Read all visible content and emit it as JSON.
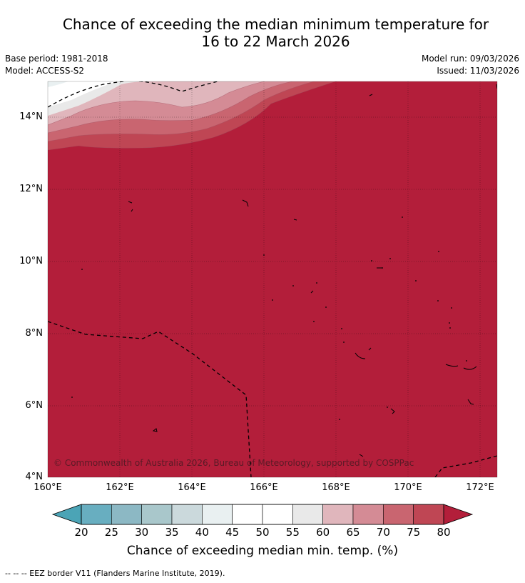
{
  "title": {
    "line1": "Chance of exceeding the median minimum temperature for",
    "line2": "16 to 22 March 2026"
  },
  "meta_left": {
    "base_period": "Base period: 1981-2018",
    "model": "Model: ACCESS-S2"
  },
  "meta_right": {
    "model_run": "Model run: 09/03/2026",
    "issued": "Issued: 11/03/2026"
  },
  "map": {
    "lat_labels": [
      "14°N",
      "12°N",
      "10°N",
      "8°N",
      "6°N",
      "4°N"
    ],
    "lon_labels": [
      "160°E",
      "162°E",
      "164°E",
      "166°E",
      "168°E",
      "170°E",
      "172°E"
    ],
    "copyright": "© Commonwealth of Australia 2026, Bureau of Meteorology, supported by COSPPac",
    "main_color": "#b31e3a"
  },
  "colorbar": {
    "ticks": [
      "20",
      "25",
      "30",
      "35",
      "40",
      "45",
      "50",
      "55",
      "60",
      "65",
      "70",
      "75",
      "80"
    ],
    "colors": [
      "#68aec0",
      "#8cb8c4",
      "#a9c7cb",
      "#cbd9dc",
      "#e9f0f1",
      "#ffffff",
      "#ffffff",
      "#e9e9e9",
      "#e0b6bc",
      "#d48b95",
      "#c96570",
      "#bf4654"
    ],
    "under_color": "#4ba4b6",
    "over_color": "#b31e3a",
    "label": "Chance of exceeding median min. temp. (%)"
  },
  "legend_note": "--  --  -- EEZ border V11 (Flanders Marine Institute, 2019)."
}
